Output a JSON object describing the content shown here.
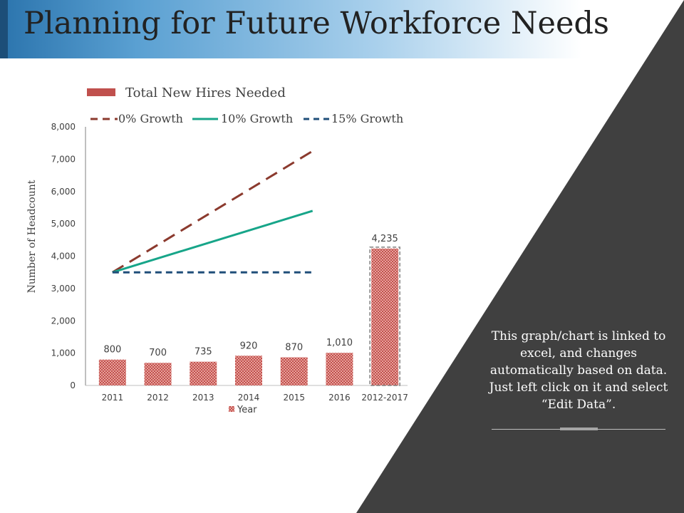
{
  "page": {
    "title": "Planning for Future Workforce Needs",
    "note": "This graph/chart is linked to excel, and changes automatically based on data. Just left click on it and select “Edit Data”."
  },
  "colors": {
    "bar": "#c0504d",
    "growth0": "#8b3a2e",
    "growth10": "#17a589",
    "growth15": "#1f4e79",
    "panel": "#404040"
  },
  "chart_data": {
    "type": "bar",
    "categories": [
      "2011",
      "2012",
      "2013",
      "2014",
      "2015",
      "2016",
      "2012-2017"
    ],
    "values": [
      800,
      700,
      735,
      920,
      870,
      1010,
      4235
    ],
    "value_labels": [
      "800",
      "700",
      "735",
      "920",
      "870",
      "1,010",
      "4,235"
    ],
    "bar_series_name": "Total New Hires Needed",
    "ylabel": "Number of Headcount",
    "xlabel": "Year",
    "ylim": [
      0,
      8000
    ],
    "yticks": [
      0,
      1000,
      2000,
      3000,
      4000,
      5000,
      6000,
      7000,
      8000
    ],
    "ytick_labels": [
      "0",
      "1,000",
      "2,000",
      "3,000",
      "4,000",
      "5,000",
      "6,000",
      "7,000",
      "8,000"
    ],
    "legend": [
      "Total New Hires Needed",
      "0% Growth",
      "10% Growth",
      "15% Growth"
    ],
    "legend_position": "top",
    "grid": false,
    "lines": [
      {
        "name": "0% Growth",
        "style": "dashed",
        "x_from": "2011",
        "x_to": "2015",
        "values": [
          3500,
          7250
        ]
      },
      {
        "name": "10% Growth",
        "style": "solid",
        "x_from": "2011",
        "x_to": "2015",
        "values": [
          3500,
          5400
        ]
      },
      {
        "name": "15% Growth",
        "style": "dashed",
        "x_from": "2011",
        "x_to": "2015",
        "values": [
          3500,
          3500
        ]
      }
    ]
  }
}
